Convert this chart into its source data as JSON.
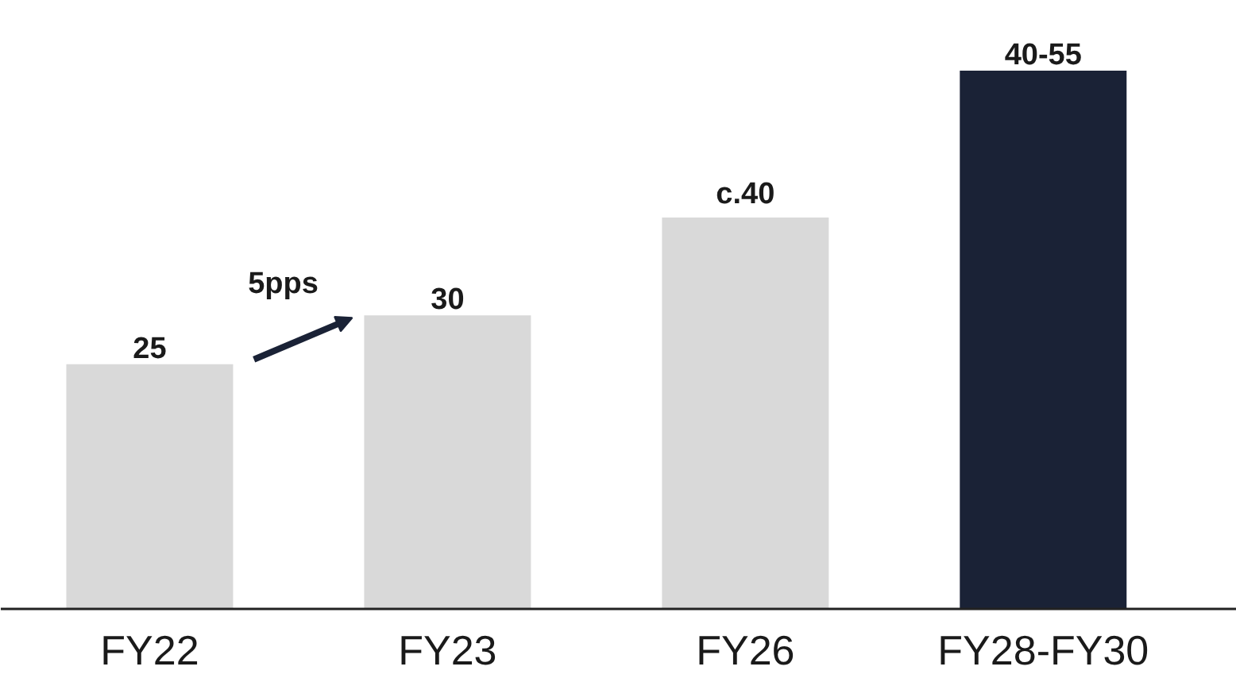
{
  "chart_data": {
    "type": "bar",
    "categories": [
      "FY22",
      "FY23",
      "FY26",
      "FY28-FY30"
    ],
    "values": [
      25,
      30,
      40,
      55
    ],
    "value_labels": [
      "25",
      "30",
      "c.40",
      "40-55"
    ],
    "colors": [
      "#d9d9d9",
      "#d9d9d9",
      "#d9d9d9",
      "#1a2236"
    ],
    "annotations": [
      "5pps"
    ],
    "grid": false
  }
}
